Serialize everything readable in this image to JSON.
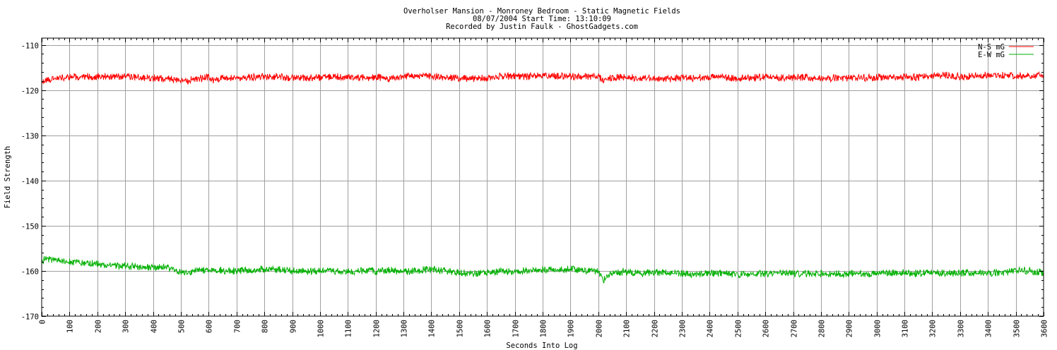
{
  "chart_data": {
    "type": "line",
    "title_lines": [
      "Overholser Mansion - Monroney Bedroom - Static Magnetic Fields",
      "08/07/2004  Start Time: 13:10:09",
      "Recorded by Justin Faulk - GhostGadgets.com"
    ],
    "xlabel": "Seconds Into Log",
    "ylabel": "Field Strength",
    "xlim": [
      0,
      3600
    ],
    "ylim": [
      -170,
      -108.5
    ],
    "x_ticks": [
      0,
      100,
      200,
      300,
      400,
      500,
      600,
      700,
      800,
      900,
      1000,
      1100,
      1200,
      1300,
      1400,
      1500,
      1600,
      1700,
      1800,
      1900,
      2000,
      2100,
      2200,
      2300,
      2400,
      2500,
      2600,
      2700,
      2800,
      2900,
      3000,
      3100,
      3200,
      3300,
      3400,
      3500,
      3600
    ],
    "y_ticks": [
      -110,
      -120,
      -130,
      -140,
      -150,
      -160,
      -170
    ],
    "grid": true,
    "legend_position": "top-right",
    "series": [
      {
        "name": "N-S mG",
        "color": "#ff0000",
        "x": [
          0,
          10,
          20,
          40,
          60,
          80,
          100,
          150,
          200,
          250,
          300,
          350,
          400,
          450,
          480,
          500,
          520,
          550,
          600,
          610,
          650,
          700,
          750,
          800,
          850,
          900,
          950,
          1000,
          1050,
          1100,
          1150,
          1200,
          1250,
          1300,
          1350,
          1400,
          1450,
          1500,
          1550,
          1600,
          1650,
          1700,
          1750,
          1800,
          1850,
          1900,
          1950,
          2000,
          2020,
          2050,
          2100,
          2150,
          2200,
          2250,
          2300,
          2350,
          2400,
          2450,
          2500,
          2550,
          2600,
          2650,
          2700,
          2750,
          2800,
          2850,
          2900,
          2950,
          3000,
          3050,
          3100,
          3150,
          3200,
          3250,
          3300,
          3350,
          3400,
          3450,
          3500,
          3550,
          3600
        ],
        "y": [
          -118.5,
          -118,
          -117.8,
          -117.5,
          -117.3,
          -117.2,
          -117.2,
          -117,
          -117,
          -117,
          -117.1,
          -117.2,
          -117.3,
          -117.5,
          -117.7,
          -118,
          -118,
          -117.5,
          -117.2,
          -117.8,
          -117.4,
          -117.3,
          -117.2,
          -117,
          -117,
          -117.3,
          -117.3,
          -117.2,
          -117,
          -117.3,
          -117.3,
          -117.2,
          -117.5,
          -117,
          -116.8,
          -116.9,
          -117.2,
          -117.4,
          -117.5,
          -117.3,
          -117,
          -116.9,
          -117,
          -116.8,
          -117,
          -116.9,
          -117,
          -117,
          -117.8,
          -117.2,
          -117.2,
          -117.3,
          -117.3,
          -117.6,
          -117.3,
          -117.4,
          -117,
          -117.2,
          -117.6,
          -117.2,
          -117.1,
          -117.3,
          -117.2,
          -117.2,
          -117.5,
          -117.3,
          -117.3,
          -117.3,
          -117.2,
          -117.3,
          -117.1,
          -117.2,
          -116.8,
          -116.7,
          -117,
          -116.9,
          -116.6,
          -116.7,
          -117,
          -116.8,
          -116.5
        ]
      },
      {
        "name": "E-W mG",
        "color": "#00b000",
        "x": [
          0,
          10,
          20,
          50,
          100,
          150,
          200,
          250,
          300,
          350,
          400,
          450,
          480,
          500,
          520,
          550,
          600,
          650,
          700,
          750,
          800,
          850,
          900,
          950,
          1000,
          1050,
          1100,
          1150,
          1200,
          1250,
          1300,
          1350,
          1400,
          1450,
          1500,
          1550,
          1600,
          1650,
          1700,
          1750,
          1800,
          1850,
          1900,
          1950,
          2000,
          2020,
          2030,
          2050,
          2100,
          2150,
          2200,
          2250,
          2300,
          2350,
          2400,
          2450,
          2500,
          2550,
          2600,
          2650,
          2700,
          2750,
          2800,
          2850,
          2900,
          2950,
          3000,
          3050,
          3100,
          3150,
          3200,
          3250,
          3300,
          3350,
          3400,
          3450,
          3500,
          3550,
          3600
        ],
        "y": [
          -158.2,
          -157.4,
          -157.3,
          -157.6,
          -158,
          -158.2,
          -158.5,
          -158.7,
          -158.9,
          -159.1,
          -159.2,
          -159.2,
          -159.6,
          -160.3,
          -160.5,
          -160,
          -159.7,
          -159.9,
          -160,
          -159.8,
          -159.6,
          -159.7,
          -160,
          -160.1,
          -160.1,
          -160,
          -160.2,
          -160,
          -160.1,
          -159.8,
          -160.2,
          -159.9,
          -159.6,
          -160,
          -160.4,
          -160.6,
          -160.5,
          -160.1,
          -160.2,
          -159.9,
          -159.7,
          -159.9,
          -159.6,
          -160,
          -160,
          -162,
          -161.5,
          -160.4,
          -160.2,
          -160.5,
          -160.3,
          -160.3,
          -160.5,
          -160.9,
          -160.5,
          -160.5,
          -160.8,
          -160.7,
          -160.6,
          -160.5,
          -160.6,
          -160.6,
          -160.6,
          -160.7,
          -160.5,
          -160.6,
          -160.6,
          -160.5,
          -160.5,
          -160.5,
          -160.4,
          -160.5,
          -160.5,
          -160.4,
          -160.5,
          -160.4,
          -159.9,
          -160,
          -160.5
        ]
      }
    ]
  }
}
